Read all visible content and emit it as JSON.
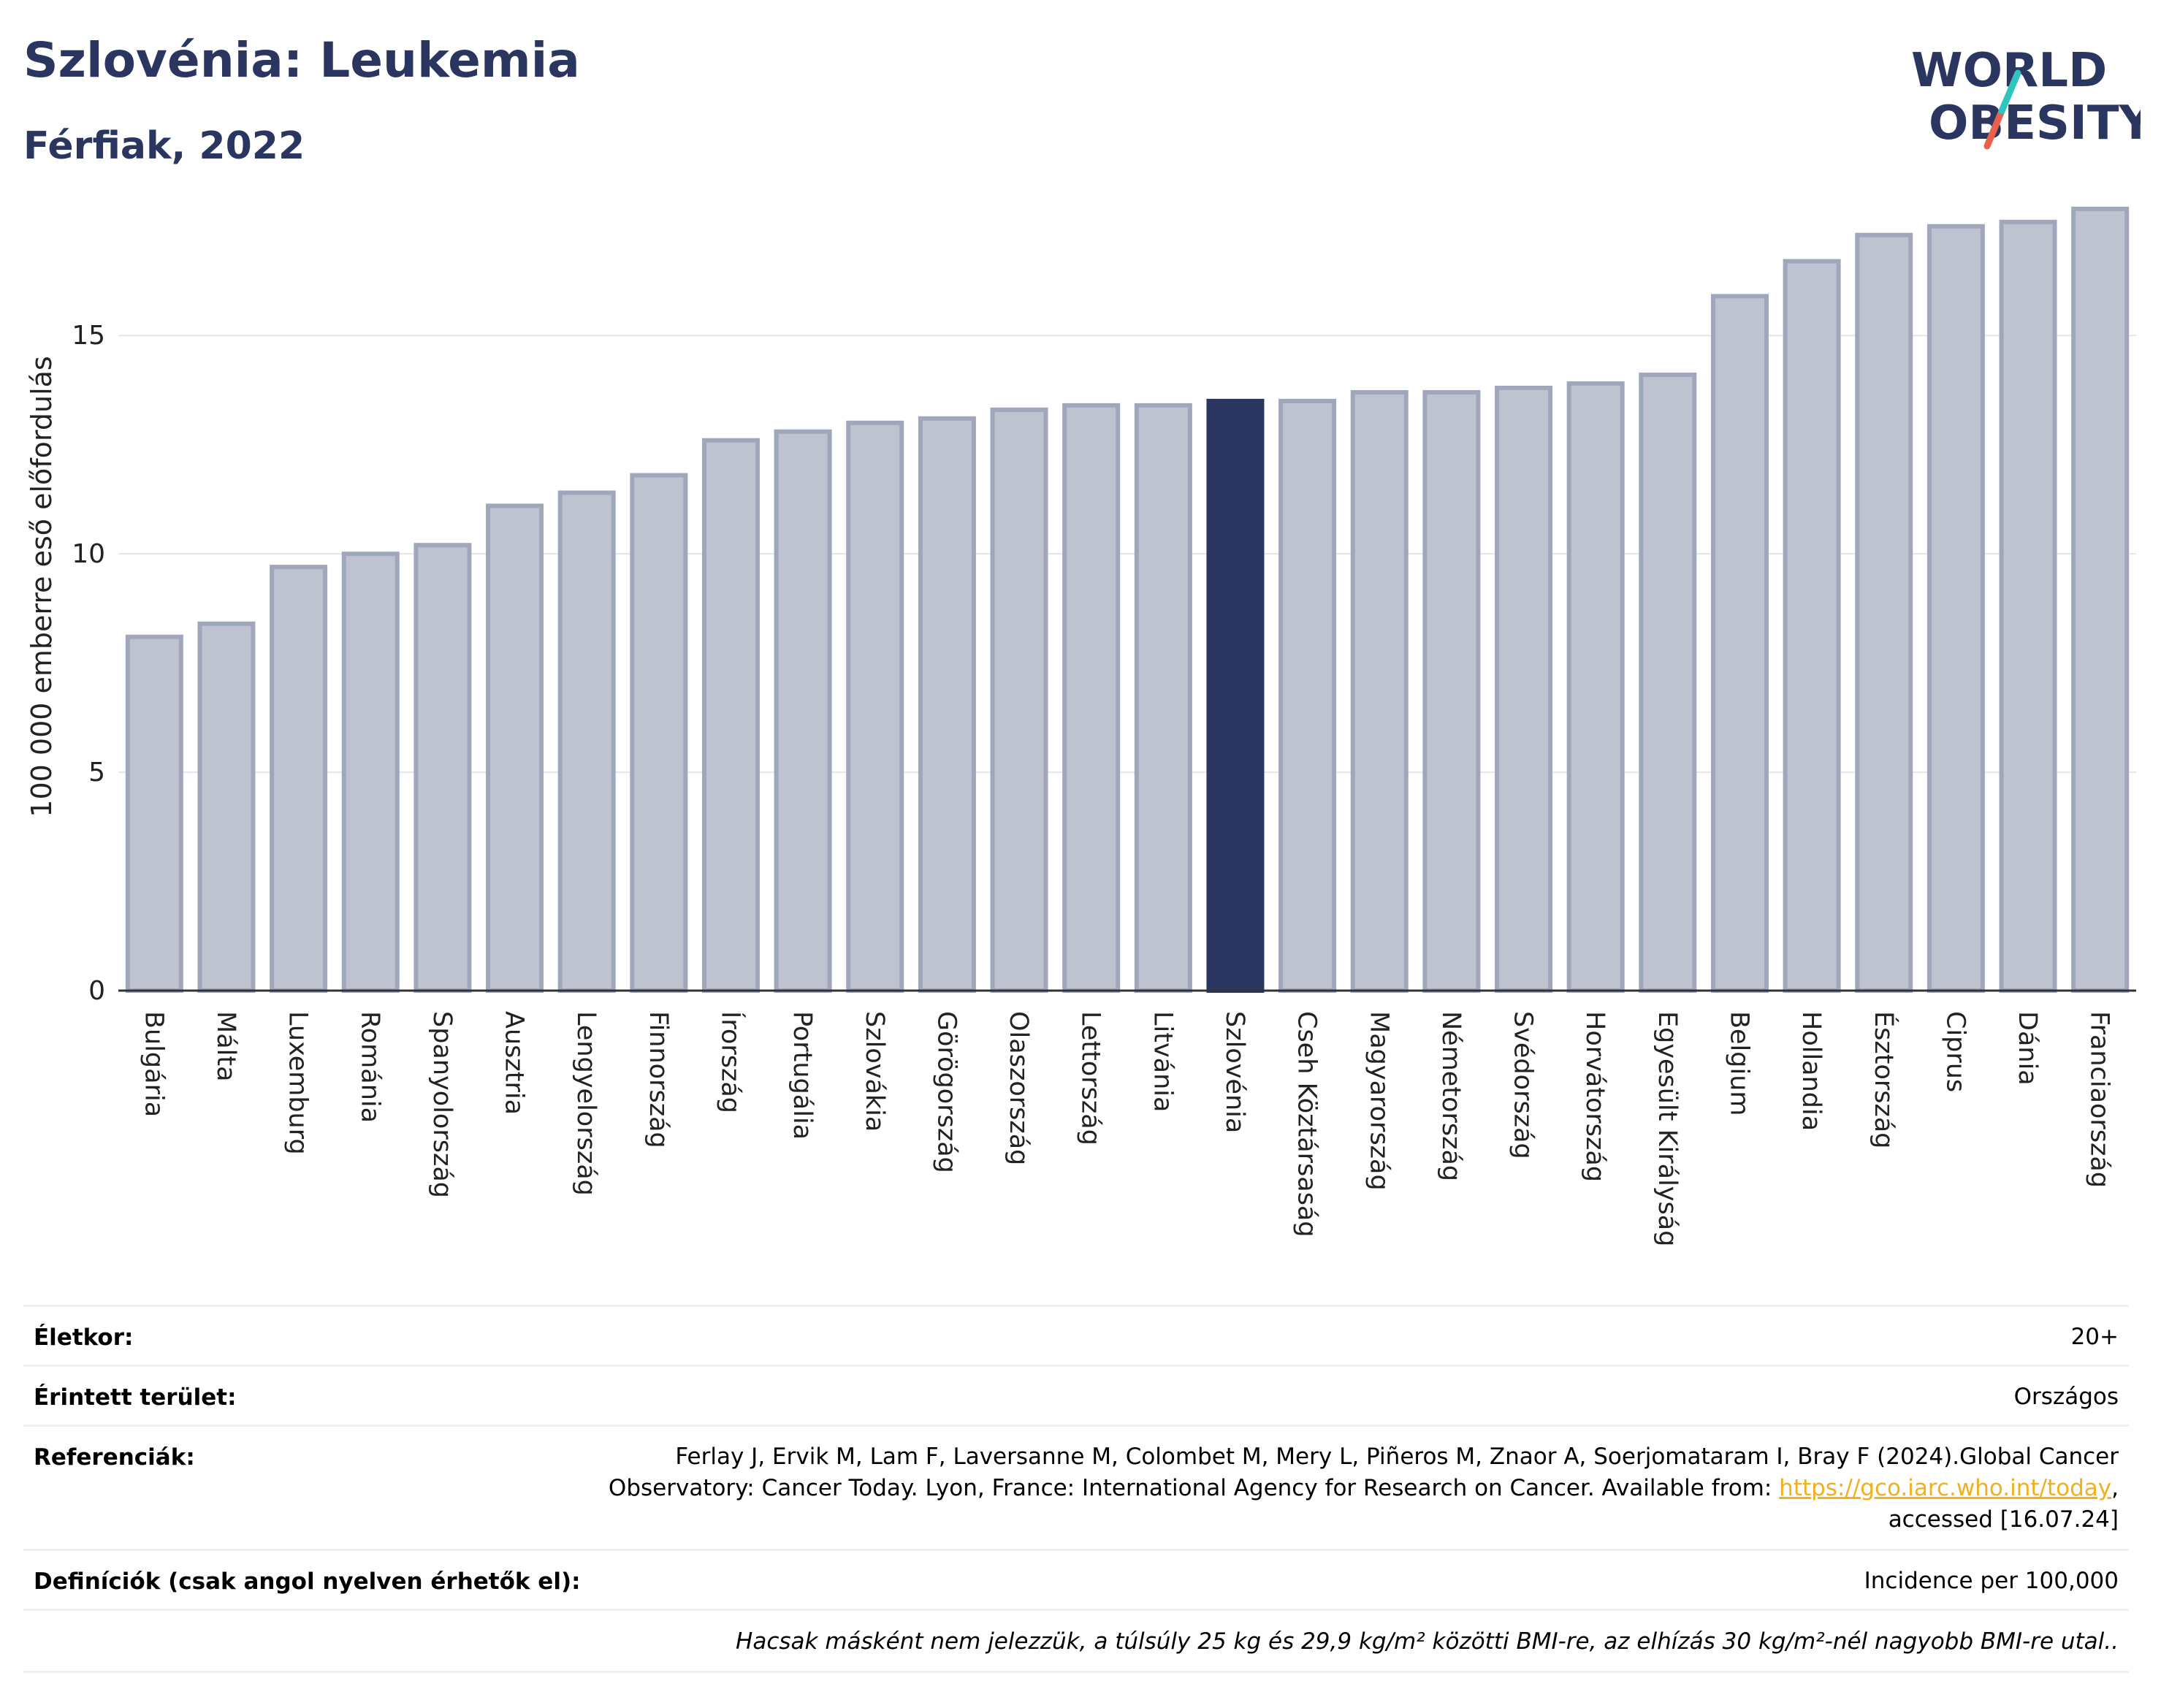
{
  "header": {
    "title": "Szlovénia: Leukemia",
    "subtitle": "Férfiak, 2022"
  },
  "logo": {
    "line1": "WORLD",
    "line2": "OBESITY",
    "accent_teal": "#2ec4c0",
    "accent_red": "#e8614f",
    "color": "#2a3560"
  },
  "chart_data": {
    "type": "bar",
    "ylabel": "100 000 emberre eső előfordulás",
    "ylim": [
      0,
      18.5
    ],
    "yticks": [
      0,
      5,
      10,
      15
    ],
    "grid": true,
    "highlight": "Szlovénia",
    "colors": {
      "bar": "#bfc3d0",
      "bar_stroke": "#a0a6bb",
      "highlight": "#2a3560"
    },
    "categories": [
      "Bulgária",
      "Málta",
      "Luxemburg",
      "Románia",
      "Spanyolország",
      "Ausztria",
      "Lengyelország",
      "Finnország",
      "Írország",
      "Portugália",
      "Szlovákia",
      "Görögország",
      "Olaszország",
      "Lettország",
      "Litvánia",
      "Szlovénia",
      "Cseh Köztársaság",
      "Magyarország",
      "Németország",
      "Svédország",
      "Horvátország",
      "Egyesült Királyság",
      "Belgium",
      "Hollandia",
      "Észtország",
      "Ciprus",
      "Dánia",
      "Franciaország"
    ],
    "values": [
      8.1,
      8.4,
      9.7,
      10.0,
      10.2,
      11.1,
      11.4,
      11.8,
      12.6,
      12.8,
      13.0,
      13.1,
      13.3,
      13.4,
      13.4,
      13.5,
      13.5,
      13.7,
      13.7,
      13.8,
      13.9,
      14.1,
      15.9,
      16.7,
      17.3,
      17.5,
      17.6,
      17.9
    ]
  },
  "info": {
    "age_label": "Életkor:",
    "age_value": "20+",
    "area_label": "Érintett terület:",
    "area_value": "Országos",
    "ref_label": "Referenciák:",
    "ref_line1": "Ferlay J, Ervik M, Lam F, Laversanne M, Colombet M, Mery L, Piñeros M, Znaor A, Soerjomataram I, Bray F (2024).Global Cancer",
    "ref_line2_pre": "Observatory: Cancer Today. Lyon, France: International Agency for Research on Cancer. Available from: ",
    "ref_link": "https://gco.iarc.who.int/today",
    "ref_line2_post": ",",
    "ref_line3": "accessed [16.07.24]",
    "def_label": "Definíciók (csak angol nyelven érhetők el):",
    "def_value": "Incidence per 100,000",
    "note": "Hacsak másként nem jelezzük, a túlsúly 25 kg és 29,9 kg/m² közötti BMI-re, az elhízás 30 kg/m²-nél nagyobb BMI-re utal.."
  }
}
